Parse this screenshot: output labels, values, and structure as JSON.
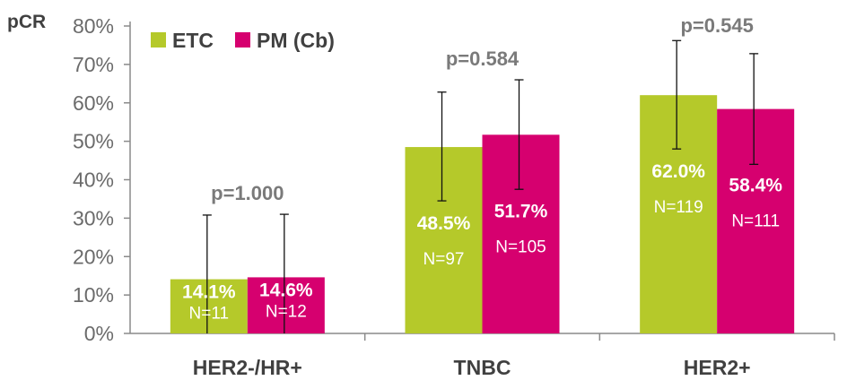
{
  "chart_data": {
    "type": "bar",
    "ylabel": "pCR",
    "ylim": [
      0,
      80
    ],
    "yticks": [
      "0%",
      "10%",
      "20%",
      "30%",
      "40%",
      "50%",
      "60%",
      "70%",
      "80%"
    ],
    "categories": [
      "HER2-/HR+",
      "TNBC",
      "HER2+"
    ],
    "series": [
      {
        "name": "ETC",
        "color": "#b5c92a",
        "values": [
          14.1,
          48.5,
          62.0
        ],
        "value_labels": [
          "14.1%",
          "48.5%",
          "62.0%"
        ],
        "n_labels": [
          "N=11",
          "N=97",
          "N=119"
        ],
        "err_low": [
          0,
          34.5,
          48.0
        ],
        "err_high": [
          30.8,
          62.8,
          76.2
        ]
      },
      {
        "name": "PM (Cb)",
        "color": "#d6006f",
        "values": [
          14.6,
          51.7,
          58.4
        ],
        "value_labels": [
          "14.6%",
          "51.7%",
          "58.4%"
        ],
        "n_labels": [
          "N=12",
          "N=105",
          "N=111"
        ],
        "err_low": [
          0,
          37.5,
          44.0
        ],
        "err_high": [
          31.0,
          66.0,
          72.8
        ]
      }
    ],
    "p_values": [
      "p=1.000",
      "p=0.584",
      "p=0.545"
    ],
    "legend_position": "top-left",
    "grid": false
  }
}
